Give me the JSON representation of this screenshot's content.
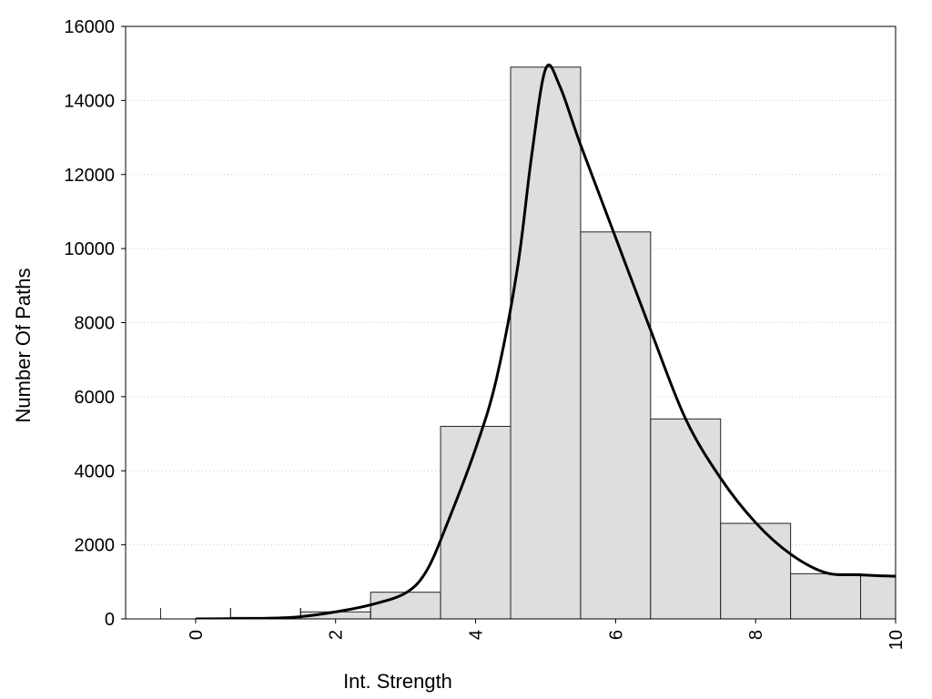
{
  "chart_data": {
    "type": "bar",
    "title": "",
    "xlabel": "Int. Strength",
    "ylabel": "Number Of Paths",
    "xlim": [
      -1,
      10
    ],
    "ylim": [
      0,
      16000
    ],
    "x_ticks": [
      0,
      2,
      4,
      6,
      8,
      10
    ],
    "y_ticks": [
      0,
      2000,
      4000,
      6000,
      8000,
      10000,
      12000,
      14000,
      16000
    ],
    "grid": "horizontal dotted",
    "bar_width": 1,
    "bars": [
      {
        "x": 0,
        "value": 0
      },
      {
        "x": 1,
        "value": 40
      },
      {
        "x": 2,
        "value": 190
      },
      {
        "x": 3,
        "value": 720
      },
      {
        "x": 4,
        "value": 5200
      },
      {
        "x": 5,
        "value": 14900
      },
      {
        "x": 6,
        "value": 10450
      },
      {
        "x": 7,
        "value": 5400
      },
      {
        "x": 8,
        "value": 2580
      },
      {
        "x": 9,
        "value": 1220
      },
      {
        "x": 10,
        "value": 1180
      }
    ],
    "series": [
      {
        "type": "line",
        "points": [
          [
            0,
            0
          ],
          [
            0.5,
            5
          ],
          [
            1,
            15
          ],
          [
            1.5,
            60
          ],
          [
            2,
            190
          ],
          [
            2.5,
            380
          ],
          [
            3,
            700
          ],
          [
            3.3,
            1300
          ],
          [
            3.6,
            2600
          ],
          [
            4,
            4600
          ],
          [
            4.3,
            6500
          ],
          [
            4.6,
            9500
          ],
          [
            4.8,
            12500
          ],
          [
            5,
            14850
          ],
          [
            5.2,
            14400
          ],
          [
            5.5,
            12800
          ],
          [
            6,
            10300
          ],
          [
            6.5,
            7800
          ],
          [
            7,
            5400
          ],
          [
            7.5,
            3800
          ],
          [
            8,
            2600
          ],
          [
            8.5,
            1750
          ],
          [
            9,
            1250
          ],
          [
            9.5,
            1190
          ],
          [
            10,
            1150
          ]
        ]
      }
    ],
    "colors": {
      "bar_fill": "#dedede",
      "bar_stroke": "#222222",
      "line": "#000000",
      "grid": "#cccccc"
    }
  }
}
